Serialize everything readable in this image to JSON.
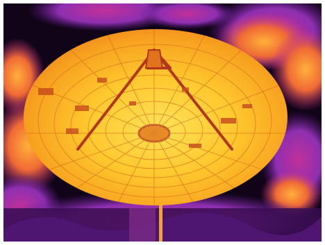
{
  "image": {
    "kind": "thermal-photograph",
    "subject": "radio-telescope-dish",
    "palette": {
      "background_border": "#ffffff",
      "sky_dark": "#120418",
      "cloud_purple": "#8e2fb0",
      "cloud_magenta": "#c1309a",
      "cloud_orange": "#f0762a",
      "dish_orange": "#f6a21d",
      "dish_yellow": "#ffd23a",
      "structure_dark": "#b3361c",
      "ground_purple": "#3a0d52"
    }
  }
}
